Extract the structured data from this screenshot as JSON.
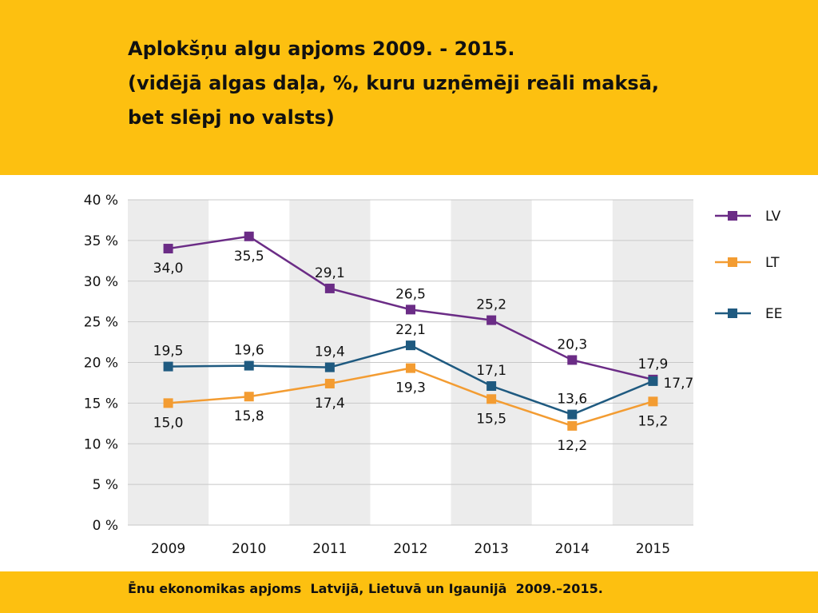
{
  "header": {
    "title_lines": [
      "Aplokšņu algu apjoms 2009. - 2015.",
      "(vidējā algas daļa, %, kuru uzņēmēji reāli maksā,",
      "bet slēpj no valsts)"
    ]
  },
  "footer": {
    "text": "Ēnu ekonomikas apjoms  Latvijā, Lietuvā un Igaunijā  2009.–2015."
  },
  "colors": {
    "background_band": "#fdc010",
    "LV": "#6b2c86",
    "LT": "#f39c32",
    "EE": "#1f5a80",
    "shading": "#ececec"
  },
  "chart_data": {
    "type": "line",
    "categories": [
      "2009",
      "2010",
      "2011",
      "2012",
      "2013",
      "2014",
      "2015"
    ],
    "ylim": [
      0,
      40
    ],
    "yticks": [
      "0 %",
      "5 %",
      "10 %",
      "15 %",
      "20 %",
      "25 %",
      "30 %",
      "35 %",
      "40 %"
    ],
    "grid": true,
    "legend_position": "right",
    "series": [
      {
        "name": "LV",
        "values": [
          34.0,
          35.5,
          29.1,
          26.5,
          25.2,
          20.3,
          17.9
        ],
        "labels": [
          "34,0",
          "35,5",
          "29,1",
          "26,5",
          "25,2",
          "20,3",
          "17,9"
        ]
      },
      {
        "name": "LT",
        "values": [
          15.0,
          15.8,
          17.4,
          19.3,
          15.5,
          12.2,
          15.2
        ],
        "labels": [
          "15,0",
          "15,8",
          "17,4",
          "19,3",
          "15,5",
          "12,2",
          "15,2"
        ]
      },
      {
        "name": "EE",
        "values": [
          19.5,
          19.6,
          19.4,
          22.1,
          17.1,
          13.6,
          17.7
        ],
        "labels": [
          "19,5",
          "19,6",
          "19,4",
          "22,1",
          "17,1",
          "13,6",
          "17,7"
        ]
      }
    ]
  }
}
